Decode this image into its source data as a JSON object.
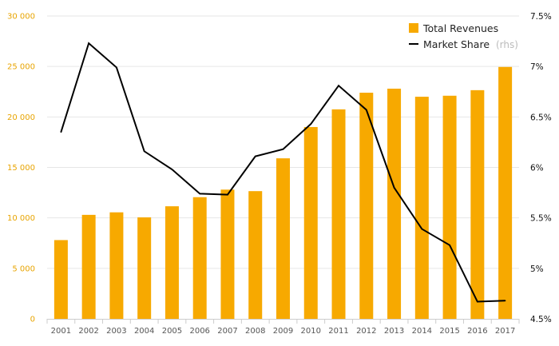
{
  "chart_data": {
    "type": "bar",
    "categories": [
      "2001",
      "2002",
      "2003",
      "2004",
      "2005",
      "2006",
      "2007",
      "2008",
      "2009",
      "2010",
      "2011",
      "2012",
      "2013",
      "2014",
      "2015",
      "2016",
      "2017"
    ],
    "series": [
      {
        "name": "Total Revenues",
        "type": "bar",
        "axis": "left",
        "color": "#f7a900",
        "values": [
          7800,
          10300,
          10550,
          10050,
          11150,
          12050,
          12800,
          12650,
          15900,
          19000,
          20750,
          22400,
          22800,
          22000,
          22100,
          22650,
          24950
        ]
      },
      {
        "name": "Market Share",
        "name_suffix": "(rhs)",
        "type": "line",
        "axis": "right",
        "color": "#000000",
        "values": [
          6.35,
          7.23,
          6.99,
          6.16,
          5.98,
          5.74,
          5.73,
          6.11,
          6.18,
          6.43,
          6.81,
          6.57,
          5.8,
          5.39,
          5.23,
          4.67,
          4.68
        ]
      }
    ],
    "y_left": {
      "ylim": [
        0,
        30000
      ],
      "ticks": [
        "0",
        "5 000",
        "10 000",
        "15 000",
        "20 000",
        "25 000",
        "30 000"
      ]
    },
    "y_right": {
      "ylim": [
        4.5,
        7.5
      ],
      "ticks": [
        "4.5%",
        "5%",
        "5.5%",
        "6%",
        "6.5%",
        "7%",
        "7.5%"
      ]
    },
    "grid": true,
    "legend_position": "top-right"
  }
}
